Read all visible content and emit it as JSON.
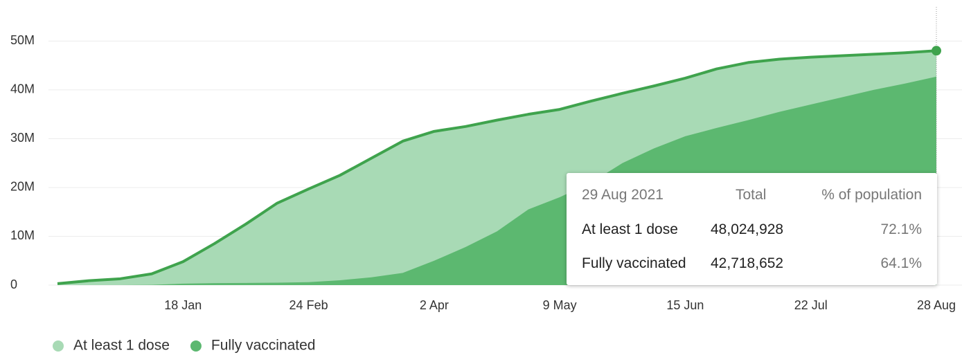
{
  "chart_data": {
    "type": "area",
    "categories": [
      null,
      null,
      null,
      null,
      "18 Jan",
      null,
      null,
      null,
      "24 Feb",
      null,
      null,
      null,
      "2 Apr",
      null,
      null,
      null,
      "9 May",
      null,
      null,
      null,
      "15 Jun",
      null,
      null,
      null,
      "22 Jul",
      null,
      null,
      null,
      "28 Aug"
    ],
    "series": [
      {
        "name": "At least 1 dose",
        "color": "#a8dab5",
        "values": [
          300000,
          900000,
          1300000,
          2300000,
          4800000,
          8500000,
          12500000,
          16800000,
          19700000,
          22500000,
          26000000,
          29500000,
          31500000,
          32500000,
          33800000,
          35000000,
          36000000,
          37700000,
          39300000,
          40800000,
          42400000,
          44300000,
          45600000,
          46300000,
          46700000,
          47000000,
          47300000,
          47600000,
          48024928
        ]
      },
      {
        "name": "Fully vaccinated",
        "color": "#5cb870",
        "values": [
          0,
          0,
          0,
          50000,
          300000,
          400000,
          450000,
          500000,
          600000,
          1000000,
          1600000,
          2500000,
          5000000,
          7800000,
          11000000,
          15500000,
          18000000,
          21000000,
          25000000,
          28000000,
          30500000,
          32200000,
          33800000,
          35500000,
          37000000,
          38500000,
          40000000,
          41300000,
          42718652
        ]
      }
    ],
    "line_color": "#3fa34d",
    "ylim": [
      0,
      57000000
    ],
    "yticks": [
      0,
      {
        "value": 10000000,
        "label": "10M"
      },
      {
        "value": 20000000,
        "label": "20M"
      },
      {
        "value": 30000000,
        "label": "30M"
      },
      {
        "value": 40000000,
        "label": "40M"
      },
      {
        "value": 50000000,
        "label": "50M"
      }
    ],
    "grid": true,
    "legend": "bottom-left",
    "tooltip": {
      "date": "29 Aug 2021",
      "headers": [
        "Total",
        "% of population"
      ],
      "rows": [
        {
          "label": "At least 1 dose",
          "total": "48,024,928",
          "percent": "72.1%"
        },
        {
          "label": "Fully vaccinated",
          "total": "42,718,652",
          "percent": "64.1%"
        }
      ]
    }
  }
}
